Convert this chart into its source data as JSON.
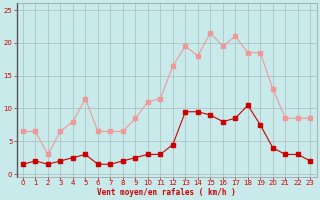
{
  "x": [
    0,
    1,
    2,
    3,
    4,
    5,
    6,
    7,
    8,
    9,
    10,
    11,
    12,
    13,
    14,
    15,
    16,
    17,
    18,
    19,
    20,
    21,
    22,
    23
  ],
  "wind_avg": [
    1.5,
    2.0,
    1.5,
    2.0,
    2.5,
    3.0,
    1.5,
    1.5,
    2.0,
    2.5,
    3.0,
    3.0,
    4.5,
    9.5,
    9.5,
    9.0,
    8.0,
    8.5,
    10.5,
    7.5,
    4.0,
    3.0,
    3.0,
    2.0
  ],
  "wind_gust": [
    6.5,
    6.5,
    3.0,
    6.5,
    8.0,
    11.5,
    6.5,
    6.5,
    6.5,
    8.5,
    11.0,
    11.5,
    16.5,
    19.5,
    18.0,
    21.5,
    19.5,
    21.0,
    18.5,
    18.5,
    13.0,
    8.5,
    8.5,
    8.5
  ],
  "xlabel": "Vent moyen/en rafales ( km/h )",
  "ylim": [
    -0.5,
    26
  ],
  "yticks": [
    0,
    5,
    10,
    15,
    20,
    25
  ],
  "xticks": [
    0,
    1,
    2,
    3,
    4,
    5,
    6,
    7,
    8,
    9,
    10,
    11,
    12,
    13,
    14,
    15,
    16,
    17,
    18,
    19,
    20,
    21,
    22,
    23
  ],
  "bg_color": "#c8eaea",
  "avg_color": "#cc0000",
  "gust_color": "#ee9999",
  "grid_color": "#aabbbb",
  "spine_color": "#999999"
}
